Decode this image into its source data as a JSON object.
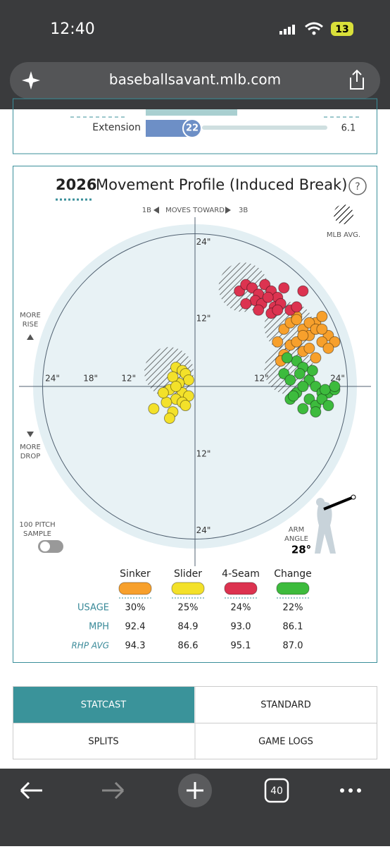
{
  "status_bar": {
    "time": "12:40",
    "battery": "13"
  },
  "browser": {
    "url": "baseballsavant.mlb.com",
    "tab_count": "40"
  },
  "top_row": {
    "label": "Extension",
    "percentile": "22",
    "value": "6.1"
  },
  "card": {
    "year": "2026",
    "title": "Movement Profile (Induced Break)",
    "help": "?",
    "direction_left": "1B",
    "direction_text": "MOVES TOWARD",
    "direction_right": "3B",
    "mlb_avg": "MLB AVG.",
    "rise": [
      "MORE",
      "RISE"
    ],
    "drop": [
      "MORE",
      "DROP"
    ],
    "sample": [
      "100 PITCH",
      "SAMPLE"
    ],
    "arm_angle_label": [
      "ARM",
      "ANGLE"
    ],
    "arm_angle": "28°"
  },
  "chart_data": {
    "type": "scatter",
    "xlim": [
      -25.5,
      25.5
    ],
    "ylim": [
      -25.5,
      25.5
    ],
    "xticks": [
      {
        "value": -24,
        "label": "24\""
      },
      {
        "value": -18,
        "label": "18\""
      },
      {
        "value": -12,
        "label": "12\""
      },
      {
        "value": 12,
        "label": "12\""
      },
      {
        "value": 24,
        "label": "24\""
      }
    ],
    "yticks": [
      {
        "value": 24,
        "label": "24\""
      },
      {
        "value": 12,
        "label": "12\""
      },
      {
        "value": -12,
        "label": "12\""
      },
      {
        "value": -24,
        "label": "24\""
      }
    ],
    "rings": [
      {
        "r": 6,
        "style": "dashed"
      },
      {
        "r": 12,
        "style": "solid"
      },
      {
        "r": 18,
        "style": "dashed"
      },
      {
        "r": 24,
        "style": "solid"
      }
    ],
    "series": [
      {
        "name": "Sinker",
        "color": "#f7a02c",
        "mlb_avg": {
          "x": 14.8,
          "y": 9.4
        },
        "x": [
          13,
          14,
          15,
          16,
          17,
          18,
          19,
          20,
          21,
          22,
          15,
          16,
          17,
          18,
          19,
          20,
          21,
          14,
          17,
          19,
          16,
          20,
          18,
          13.5
        ],
        "y": [
          7,
          9,
          10,
          11,
          9,
          8,
          10,
          11,
          8,
          7,
          6.5,
          7,
          8,
          10,
          9,
          7,
          6,
          5,
          5.5,
          4.5,
          10.5,
          9,
          6,
          4
        ]
      },
      {
        "name": "Slider",
        "color": "#f3e12a",
        "mlb_avg": {
          "x": -4.1,
          "y": 2.3
        },
        "x": [
          -3,
          -2,
          -1.5,
          -1,
          -2.5,
          -3.5,
          -4,
          -2,
          -1,
          -3,
          -4.5,
          -6.5,
          -3.5,
          -2,
          -1.5,
          -3,
          -5,
          -4
        ],
        "y": [
          3,
          2.5,
          2,
          1,
          0.5,
          1.5,
          -0.5,
          -1,
          -1.5,
          -2,
          -2.5,
          -3.5,
          -4,
          -2.5,
          -3,
          0,
          -1,
          -5
        ]
      },
      {
        "name": "4-Seam",
        "color": "#dc3350",
        "mlb_avg": {
          "x": 7.6,
          "y": 15.6
        },
        "x": [
          7,
          8,
          9,
          10,
          11,
          12,
          13,
          9.5,
          10.5,
          11.5,
          12.5,
          13.5,
          8,
          14,
          15,
          16,
          17,
          12,
          13,
          10
        ],
        "y": [
          15,
          16,
          15.5,
          14.5,
          16,
          15,
          14,
          13.5,
          13,
          14,
          12.5,
          13,
          13,
          15.5,
          12,
          12.5,
          15,
          11.5,
          12,
          12
        ]
      },
      {
        "name": "Change",
        "color": "#3dbb3d",
        "mlb_avg": {
          "x": 14.8,
          "y": 2.6
        },
        "x": [
          14,
          15,
          16,
          17,
          18,
          19,
          20,
          21,
          22,
          15,
          16,
          17,
          18,
          19,
          20,
          21,
          14.5,
          16.5,
          18.5,
          20.5,
          17,
          19,
          22,
          15.5
        ],
        "y": [
          2,
          1,
          4,
          3,
          1,
          0,
          -1,
          -1,
          -0.5,
          -2,
          -1,
          0,
          -2,
          -3,
          -2,
          -3,
          4.5,
          2,
          2.5,
          -0.5,
          -3.5,
          -4,
          0,
          -1.5
        ]
      }
    ]
  },
  "pitch_table": {
    "rows": [
      {
        "label": "USAGE",
        "cells": [
          "30%",
          "25%",
          "24%",
          "22%"
        ]
      },
      {
        "label": "MPH",
        "cells": [
          "92.4",
          "84.9",
          "93.0",
          "86.1"
        ]
      },
      {
        "label": "RHP AVG",
        "cells": [
          "94.3",
          "86.6",
          "95.1",
          "87.0"
        ]
      }
    ]
  },
  "tabs": [
    "STATCAST",
    "STANDARD",
    "SPLITS",
    "GAME LOGS"
  ]
}
